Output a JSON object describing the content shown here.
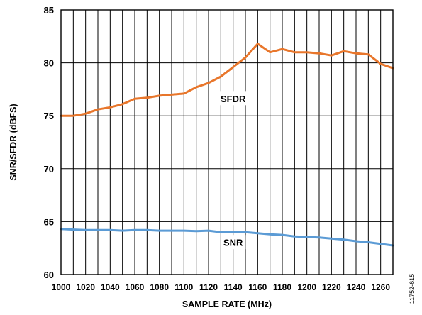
{
  "chart_data": {
    "type": "line",
    "xlabel": "SAMPLE RATE (MHz)",
    "ylabel": "SNR/SFDR (dBFS)",
    "xlim": [
      1000,
      1270
    ],
    "ylim": [
      60,
      85
    ],
    "x_ticks": [
      "1000",
      "1020",
      "1040",
      "1060",
      "1080",
      "1100",
      "1120",
      "1140",
      "1160",
      "1180",
      "1200",
      "1220",
      "1240",
      "1260"
    ],
    "y_ticks": [
      "60",
      "65",
      "70",
      "75",
      "80",
      "85"
    ],
    "grid": true,
    "series": [
      {
        "name": "SFDR",
        "color": "#E8762B",
        "x": [
          1000,
          1010,
          1020,
          1030,
          1040,
          1050,
          1060,
          1070,
          1080,
          1090,
          1100,
          1110,
          1120,
          1130,
          1140,
          1150,
          1160,
          1170,
          1180,
          1190,
          1200,
          1210,
          1220,
          1230,
          1240,
          1250,
          1260,
          1270
        ],
        "y": [
          75.0,
          75.0,
          75.2,
          75.6,
          75.8,
          76.1,
          76.6,
          76.7,
          76.9,
          77.0,
          77.1,
          77.7,
          78.1,
          78.7,
          79.6,
          80.5,
          81.8,
          81.0,
          81.3,
          81.0,
          81.0,
          80.9,
          80.7,
          81.1,
          80.9,
          80.8,
          79.9,
          79.5
        ]
      },
      {
        "name": "SNR",
        "color": "#5B9BD5",
        "x": [
          1000,
          1010,
          1020,
          1030,
          1040,
          1050,
          1060,
          1070,
          1080,
          1090,
          1100,
          1110,
          1120,
          1130,
          1140,
          1150,
          1160,
          1170,
          1180,
          1190,
          1200,
          1210,
          1220,
          1230,
          1240,
          1250,
          1260,
          1270
        ],
        "y": [
          64.3,
          64.25,
          64.2,
          64.2,
          64.2,
          64.15,
          64.2,
          64.2,
          64.15,
          64.15,
          64.15,
          64.1,
          64.15,
          64.0,
          64.0,
          64.0,
          63.9,
          63.8,
          63.75,
          63.6,
          63.55,
          63.5,
          63.4,
          63.3,
          63.15,
          63.05,
          62.9,
          62.75
        ]
      }
    ],
    "figure_id": "11752-615"
  }
}
